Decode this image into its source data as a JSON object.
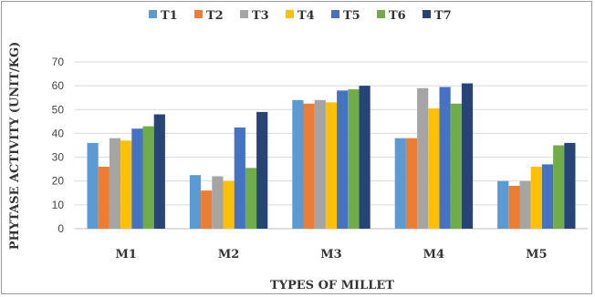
{
  "chart_data": {
    "type": "bar",
    "title": "",
    "xlabel": "TYPES OF MILLET",
    "ylabel": "PHYTASE ACTIVITY  (UNIT/KG)",
    "ylim": [
      0,
      70
    ],
    "yticks": [
      0,
      10,
      20,
      30,
      40,
      50,
      60,
      70
    ],
    "grid": true,
    "legend": "top",
    "categories": [
      "M1",
      "M2",
      "M3",
      "M4",
      "M5"
    ],
    "series": [
      {
        "name": "T1",
        "color": "#5b9bd5",
        "values": [
          36,
          22.5,
          54,
          38,
          20
        ]
      },
      {
        "name": "T2",
        "color": "#ed7d31",
        "values": [
          26,
          16,
          52.5,
          38,
          18
        ]
      },
      {
        "name": "T3",
        "color": "#a5a5a5",
        "values": [
          38,
          22,
          54,
          59,
          20
        ]
      },
      {
        "name": "T4",
        "color": "#ffc000",
        "values": [
          37,
          20,
          53,
          50.5,
          26
        ]
      },
      {
        "name": "T5",
        "color": "#4472c4",
        "values": [
          42,
          42.5,
          58,
          59.5,
          27
        ]
      },
      {
        "name": "T6",
        "color": "#70ad47",
        "values": [
          43,
          25.5,
          58.5,
          52.5,
          35
        ]
      },
      {
        "name": "T7",
        "color": "#264478",
        "values": [
          48,
          49,
          60,
          61,
          36
        ]
      }
    ]
  }
}
